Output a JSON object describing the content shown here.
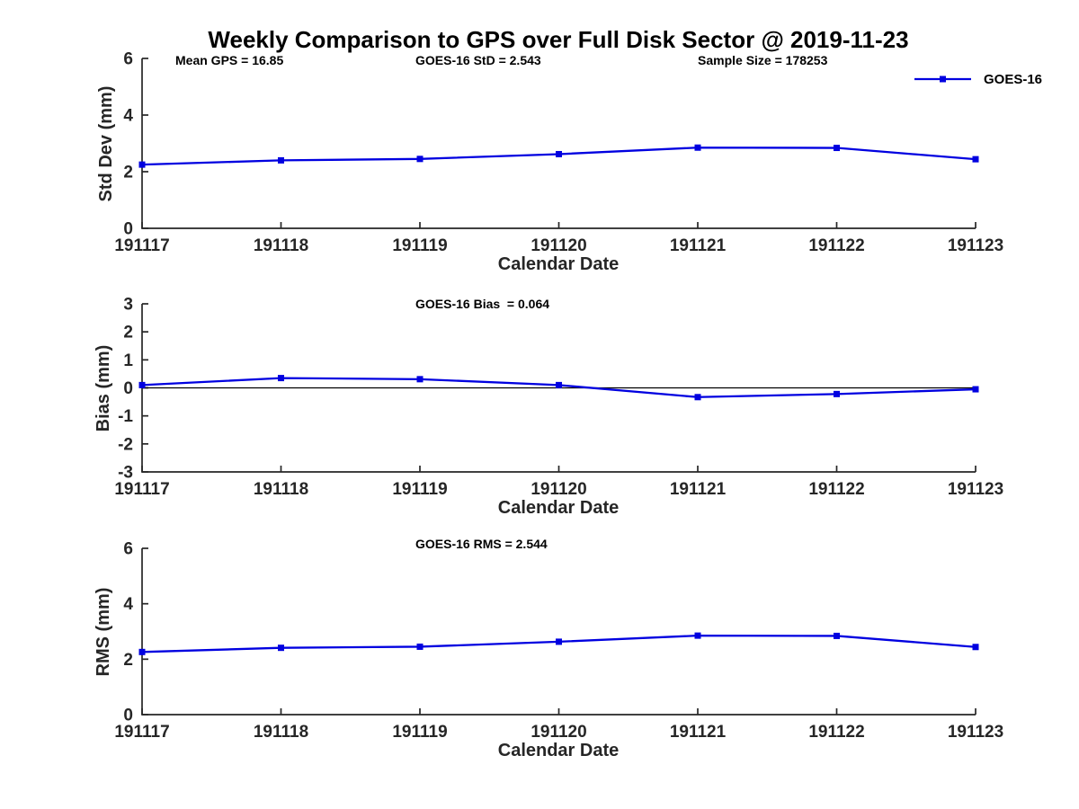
{
  "title": "Weekly Comparison to GPS over Full Disk Sector @ 2019-11-23",
  "xlabel": "Calendar Date",
  "legend": {
    "label": "GOES-16",
    "position": "top-right-outside"
  },
  "colors": {
    "series": "#0000e0",
    "axis": "#262626",
    "zero_line": "#000000"
  },
  "stats": {
    "mean_gps": 16.85,
    "goes16_std": 2.543,
    "sample_size": 178253,
    "goes16_bias": 0.064,
    "goes16_rms": 2.544
  },
  "chart_data": [
    {
      "type": "line",
      "name": "std-dev",
      "series_name": "GOES-16",
      "ylabel": "Std Dev (mm)",
      "ylim": [
        0,
        6
      ],
      "yticks": [
        0,
        2,
        4,
        6
      ],
      "categories": [
        "191117",
        "191118",
        "191119",
        "191120",
        "191121",
        "191122",
        "191123"
      ],
      "values": [
        2.25,
        2.4,
        2.45,
        2.62,
        2.85,
        2.84,
        2.44
      ],
      "zero_line": false,
      "grid": false,
      "annotations": [
        "Mean GPS = 16.85",
        "GOES-16 StD = 2.543",
        "Sample Size = 178253"
      ]
    },
    {
      "type": "line",
      "name": "bias",
      "series_name": "GOES-16",
      "ylabel": "Bias (mm)",
      "ylim": [
        -3,
        3
      ],
      "yticks": [
        -3,
        -2,
        -1,
        0,
        1,
        2,
        3
      ],
      "categories": [
        "191117",
        "191118",
        "191119",
        "191120",
        "191121",
        "191122",
        "191123"
      ],
      "values": [
        0.1,
        0.35,
        0.31,
        0.1,
        -0.33,
        -0.22,
        -0.05
      ],
      "zero_line": true,
      "grid": false,
      "annotations": [
        "GOES-16 Bias  = 0.064"
      ]
    },
    {
      "type": "line",
      "name": "rms",
      "series_name": "GOES-16",
      "ylabel": "RMS (mm)",
      "ylim": [
        0,
        6
      ],
      "yticks": [
        0,
        2,
        4,
        6
      ],
      "categories": [
        "191117",
        "191118",
        "191119",
        "191120",
        "191121",
        "191122",
        "191123"
      ],
      "values": [
        2.26,
        2.41,
        2.45,
        2.63,
        2.85,
        2.84,
        2.44
      ],
      "zero_line": false,
      "grid": false,
      "annotations": [
        "GOES-16 RMS = 2.544"
      ]
    }
  ]
}
